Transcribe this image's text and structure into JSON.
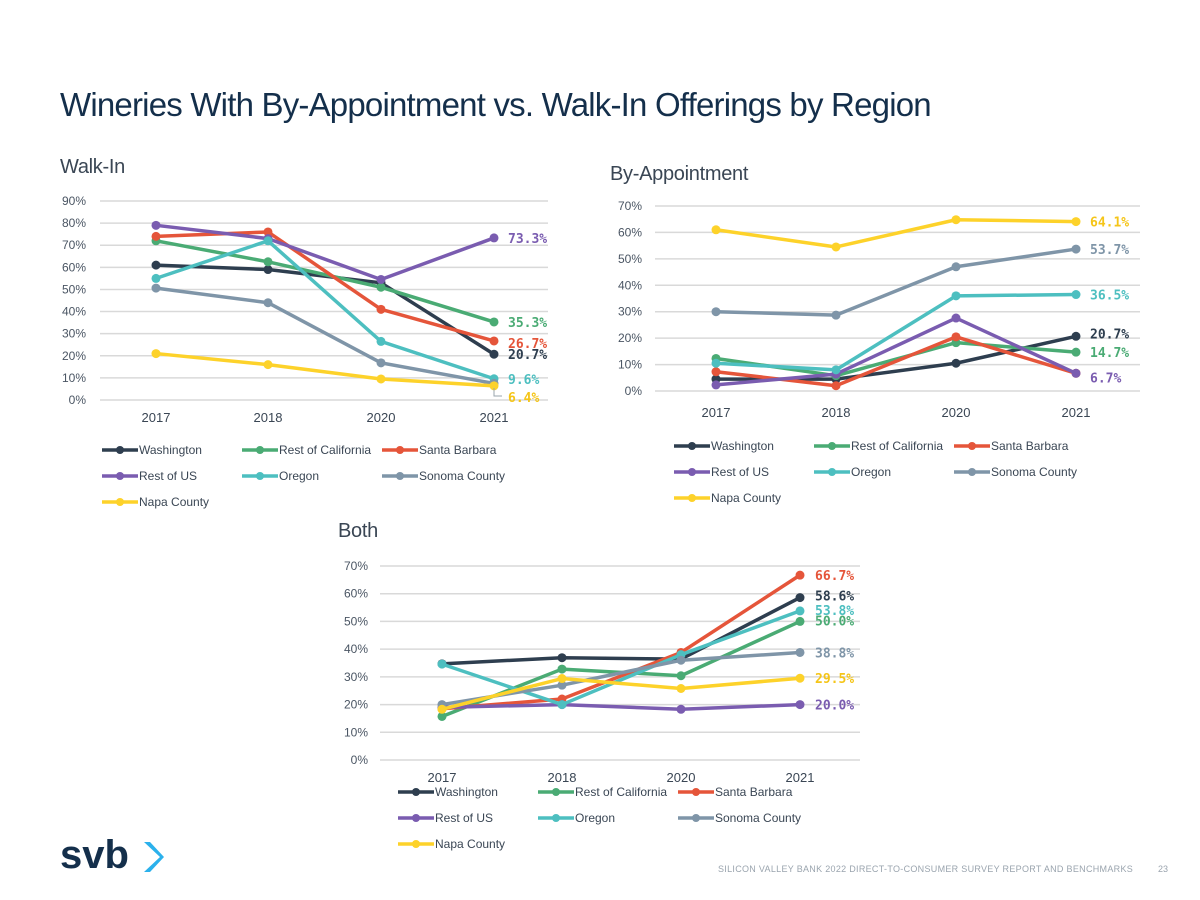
{
  "page": {
    "title": "Wineries With By-Appointment vs. Walk-In Offerings by Region",
    "footer": "SILICON VALLEY BANK 2022 DIRECT-TO-CONSUMER SURVEY REPORT AND BENCHMARKS",
    "page_number": "23",
    "logo_text": "svb"
  },
  "colors": {
    "Washington": "#2e3e4f",
    "Rest of California": "#4aab74",
    "Santa Barbara": "#e5553a",
    "Rest of US": "#7a5cb0",
    "Oregon": "#4dbfc0",
    "Sonoma County": "#7f95a8",
    "Napa County": "#fdd22a",
    "logo_dark": "#142f4b",
    "logo_accent": "#2bb1ec"
  },
  "legend_order": [
    "Washington",
    "Rest of California",
    "Santa Barbara",
    "Rest of US",
    "Oregon",
    "Sonoma County",
    "Napa County"
  ],
  "chart_data": [
    {
      "id": "walkin",
      "type": "line",
      "title": "Walk-In",
      "categories": [
        "2017",
        "2018",
        "2020",
        "2021"
      ],
      "ylim": [
        0,
        90
      ],
      "yticks": [
        "0%",
        "10%",
        "20%",
        "30%",
        "40%",
        "50%",
        "60%",
        "70%",
        "80%",
        "90%"
      ],
      "grid": true,
      "legend": "bottom",
      "series": [
        {
          "name": "Washington",
          "values": [
            61,
            59,
            53,
            20.7
          ],
          "label": "20.7%"
        },
        {
          "name": "Rest of California",
          "values": [
            72,
            62.5,
            51,
            35.3
          ],
          "label": "35.3%"
        },
        {
          "name": "Santa Barbara",
          "values": [
            74,
            76,
            41,
            26.7
          ],
          "label": "26.7%"
        },
        {
          "name": "Rest of US",
          "values": [
            79,
            73,
            54.5,
            73.3
          ],
          "label": "73.3%"
        },
        {
          "name": "Oregon",
          "values": [
            55,
            72,
            26.5,
            9.6
          ],
          "label": "9.6%"
        },
        {
          "name": "Sonoma County",
          "values": [
            50.6,
            44,
            16.8,
            7.5
          ],
          "label": ""
        },
        {
          "name": "Napa County",
          "values": [
            21,
            16,
            9.5,
            6.4
          ],
          "label": "6.4%"
        }
      ]
    },
    {
      "id": "appointment",
      "type": "line",
      "title": "By-Appointment",
      "categories": [
        "2017",
        "2018",
        "2020",
        "2021"
      ],
      "ylim": [
        0,
        70
      ],
      "yticks": [
        "0%",
        "10%",
        "20%",
        "30%",
        "40%",
        "50%",
        "60%",
        "70%"
      ],
      "grid": true,
      "legend": "bottom",
      "series": [
        {
          "name": "Washington",
          "values": [
            4.5,
            4.5,
            10.5,
            20.7
          ],
          "label": "20.7%"
        },
        {
          "name": "Rest of California",
          "values": [
            12.3,
            5.8,
            18.3,
            14.7
          ],
          "label": "14.7%"
        },
        {
          "name": "Santa Barbara",
          "values": [
            7.3,
            2,
            20.5,
            6.7
          ],
          "label": ""
        },
        {
          "name": "Rest of US",
          "values": [
            2.3,
            6.4,
            27.6,
            6.7
          ],
          "label": "6.7%"
        },
        {
          "name": "Oregon",
          "values": [
            10.5,
            8,
            36,
            36.5
          ],
          "label": "36.5%"
        },
        {
          "name": "Sonoma County",
          "values": [
            30,
            28.7,
            47,
            53.7
          ],
          "label": "53.7%"
        },
        {
          "name": "Napa County",
          "values": [
            61,
            54.5,
            64.8,
            64.1
          ],
          "label": "64.1%"
        }
      ]
    },
    {
      "id": "both",
      "type": "line",
      "title": "Both",
      "categories": [
        "2017",
        "2018",
        "2020",
        "2021"
      ],
      "ylim": [
        0,
        70
      ],
      "yticks": [
        "0%",
        "10%",
        "20%",
        "30%",
        "40%",
        "50%",
        "60%",
        "70%"
      ],
      "grid": true,
      "legend": "bottom",
      "series": [
        {
          "name": "Washington",
          "values": [
            34.7,
            36.9,
            36.4,
            58.6
          ],
          "label": "58.6%"
        },
        {
          "name": "Rest of California",
          "values": [
            15.7,
            32.8,
            30.4,
            50.0
          ],
          "label": "50.0%"
        },
        {
          "name": "Santa Barbara",
          "values": [
            18.5,
            22,
            38.8,
            66.7
          ],
          "label": "66.7%"
        },
        {
          "name": "Rest of US",
          "values": [
            19,
            20,
            18.3,
            20.0
          ],
          "label": "20.0%"
        },
        {
          "name": "Oregon",
          "values": [
            34.6,
            20,
            38,
            53.8
          ],
          "label": "53.8%"
        },
        {
          "name": "Sonoma County",
          "values": [
            20,
            27,
            36,
            38.8
          ],
          "label": "38.8%"
        },
        {
          "name": "Napa County",
          "values": [
            18.3,
            29.4,
            25.8,
            29.5
          ],
          "label": "29.5%"
        }
      ]
    }
  ]
}
